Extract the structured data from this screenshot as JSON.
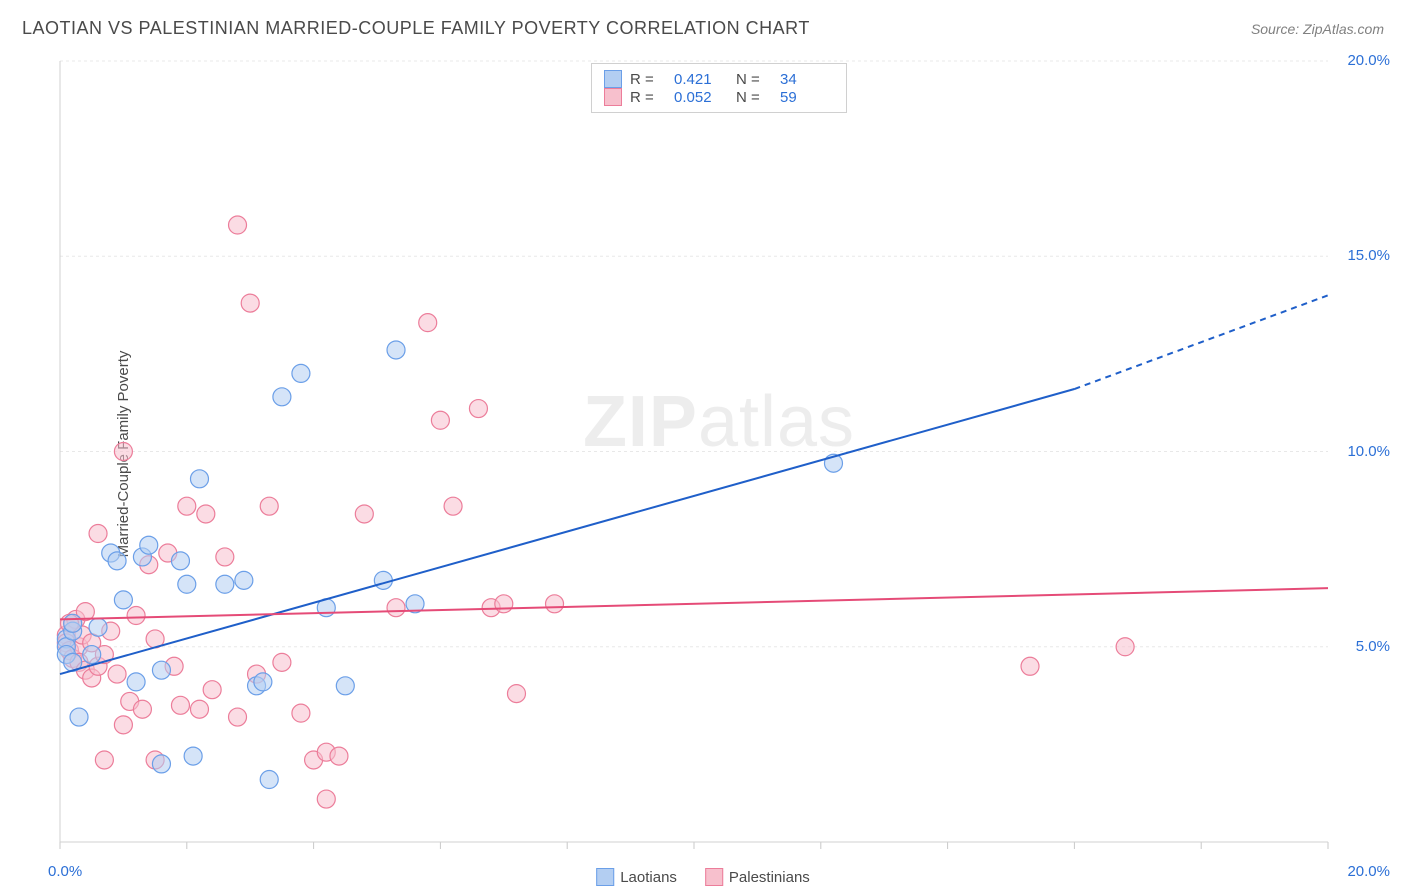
{
  "header": {
    "title": "LAOTIAN VS PALESTINIAN MARRIED-COUPLE FAMILY POVERTY CORRELATION CHART",
    "source": "Source: ZipAtlas.com"
  },
  "ylabel": "Married-Couple Family Poverty",
  "watermark": {
    "a": "ZIP",
    "b": "atlas"
  },
  "chart": {
    "type": "scatter",
    "xlim": [
      0,
      20
    ],
    "ylim": [
      0,
      20
    ],
    "xticks": [
      0,
      20
    ],
    "yticks_right": [
      5,
      10,
      15,
      20
    ],
    "xtick_labels": [
      "0.0%",
      "20.0%"
    ],
    "ytick_labels": [
      "5.0%",
      "10.0%",
      "15.0%",
      "20.0%"
    ],
    "grid_color": "#e8e8e8",
    "axis_color": "#d0d0d0",
    "tick_color": "#c8c8c8",
    "background": "#ffffff",
    "label_color": "#2b6fd6",
    "series": [
      {
        "name": "Laotians",
        "color_fill": "#b3cef2",
        "color_stroke": "#6b9fe8",
        "R": "0.421",
        "N": "34",
        "trend": {
          "x0": 0,
          "y0": 4.3,
          "x1": 16,
          "y1": 11.6,
          "dash_x1": 20,
          "dash_y1": 14.0,
          "stroke": "#1f5fc9",
          "width": 2
        },
        "points": [
          [
            0.1,
            5.2
          ],
          [
            0.1,
            5.0
          ],
          [
            0.1,
            4.8
          ],
          [
            0.2,
            5.4
          ],
          [
            0.2,
            4.6
          ],
          [
            0.2,
            5.6
          ],
          [
            0.3,
            3.2
          ],
          [
            0.5,
            4.8
          ],
          [
            0.6,
            5.5
          ],
          [
            0.8,
            7.4
          ],
          [
            0.9,
            7.2
          ],
          [
            1.2,
            4.1
          ],
          [
            1.0,
            6.2
          ],
          [
            1.3,
            7.3
          ],
          [
            1.4,
            7.6
          ],
          [
            1.6,
            2.0
          ],
          [
            1.6,
            4.4
          ],
          [
            1.9,
            7.2
          ],
          [
            2.0,
            6.6
          ],
          [
            2.1,
            2.2
          ],
          [
            2.2,
            9.3
          ],
          [
            2.6,
            6.6
          ],
          [
            2.9,
            6.7
          ],
          [
            3.1,
            4.0
          ],
          [
            3.2,
            4.1
          ],
          [
            3.3,
            1.6
          ],
          [
            3.5,
            11.4
          ],
          [
            3.8,
            12.0
          ],
          [
            4.2,
            6.0
          ],
          [
            4.5,
            4.0
          ],
          [
            5.1,
            6.7
          ],
          [
            5.3,
            12.6
          ],
          [
            5.6,
            6.1
          ],
          [
            12.2,
            9.7
          ]
        ]
      },
      {
        "name": "Palestinians",
        "color_fill": "#f7c0cd",
        "color_stroke": "#ec7d9a",
        "R": "0.052",
        "N": "59",
        "trend": {
          "x0": 0,
          "y0": 5.7,
          "x1": 20,
          "y1": 6.5,
          "stroke": "#e54b77",
          "width": 2
        },
        "points": [
          [
            0.1,
            5.3
          ],
          [
            0.1,
            5.1
          ],
          [
            0.15,
            4.9
          ],
          [
            0.2,
            5.6
          ],
          [
            0.2,
            4.7
          ],
          [
            0.25,
            5.7
          ],
          [
            0.3,
            5.0
          ],
          [
            0.3,
            4.6
          ],
          [
            0.35,
            5.3
          ],
          [
            0.4,
            4.4
          ],
          [
            0.4,
            5.9
          ],
          [
            0.5,
            4.2
          ],
          [
            0.5,
            5.1
          ],
          [
            0.6,
            4.5
          ],
          [
            0.6,
            7.9
          ],
          [
            0.7,
            4.8
          ],
          [
            0.7,
            2.1
          ],
          [
            0.8,
            5.4
          ],
          [
            0.9,
            4.3
          ],
          [
            1.0,
            10.0
          ],
          [
            1.1,
            3.6
          ],
          [
            1.2,
            5.8
          ],
          [
            1.3,
            3.4
          ],
          [
            1.4,
            7.1
          ],
          [
            1.5,
            5.2
          ],
          [
            1.5,
            2.1
          ],
          [
            1.7,
            7.4
          ],
          [
            1.8,
            4.5
          ],
          [
            1.9,
            3.5
          ],
          [
            2.0,
            8.6
          ],
          [
            2.2,
            3.4
          ],
          [
            2.3,
            8.4
          ],
          [
            2.4,
            3.9
          ],
          [
            2.6,
            7.3
          ],
          [
            2.8,
            15.8
          ],
          [
            2.8,
            3.2
          ],
          [
            3.0,
            13.8
          ],
          [
            3.1,
            4.3
          ],
          [
            3.3,
            8.6
          ],
          [
            3.5,
            4.6
          ],
          [
            3.8,
            3.3
          ],
          [
            4.0,
            2.1
          ],
          [
            4.2,
            2.3
          ],
          [
            4.2,
            1.1
          ],
          [
            4.4,
            2.2
          ],
          [
            4.8,
            8.4
          ],
          [
            5.3,
            6.0
          ],
          [
            5.8,
            13.3
          ],
          [
            6.0,
            10.8
          ],
          [
            6.2,
            8.6
          ],
          [
            6.6,
            11.1
          ],
          [
            6.8,
            6.0
          ],
          [
            7.0,
            6.1
          ],
          [
            7.2,
            3.8
          ],
          [
            7.8,
            6.1
          ],
          [
            15.3,
            4.5
          ],
          [
            16.8,
            5.0
          ],
          [
            1.0,
            3.0
          ],
          [
            0.15,
            5.6
          ]
        ]
      }
    ]
  },
  "legend_bottom": [
    {
      "label": "Laotians"
    },
    {
      "label": "Palestinians"
    }
  ]
}
